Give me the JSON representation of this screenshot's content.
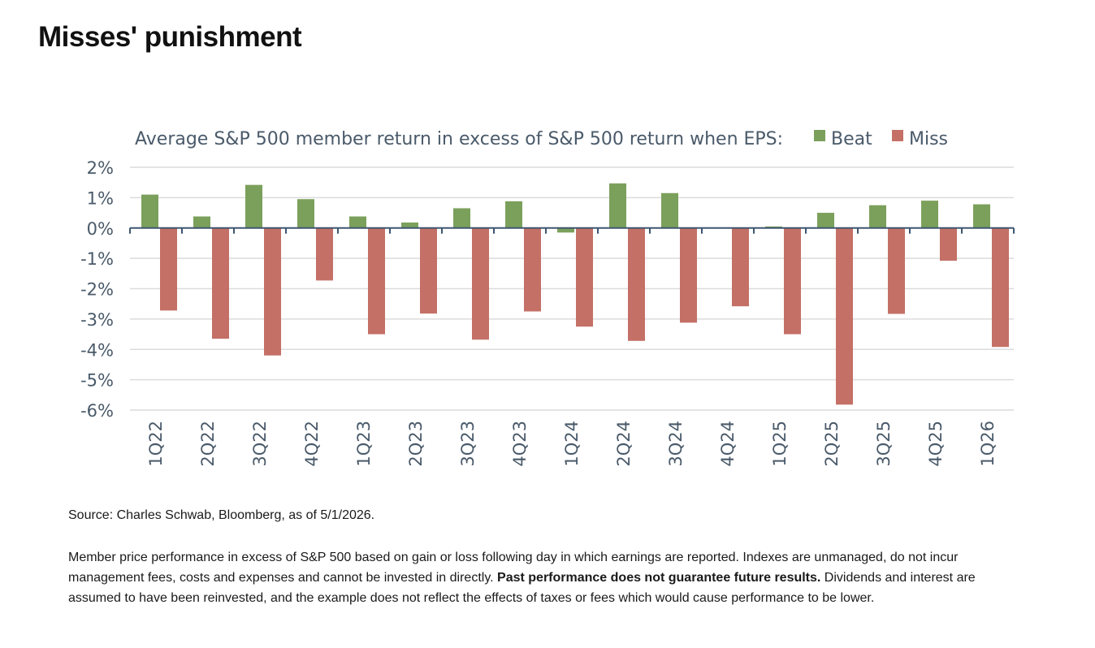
{
  "page": {
    "title": "Misses' punishment",
    "source": "Source: Charles Schwab, Bloomberg, as of 5/1/2026.",
    "disclaimer_part1": "Member price performance in excess of S&P 500 based on gain or loss following day in which earnings are reported. Indexes are unmanaged, do not incur management fees, costs and expenses and cannot be invested in directly. ",
    "disclaimer_bold": "Past performance does not guarantee future results.",
    "disclaimer_part2": " Dividends and interest are assumed to have been reinvested, and the example does not reflect the effects of taxes or fees which would cause performance to be lower."
  },
  "chart_data": {
    "type": "bar",
    "title": "Average S&P 500 member return in excess of S&P 500 return when EPS:",
    "categories": [
      "1Q22",
      "2Q22",
      "3Q22",
      "4Q22",
      "1Q23",
      "2Q23",
      "3Q23",
      "4Q23",
      "1Q24",
      "2Q24",
      "3Q24",
      "4Q24",
      "1Q25",
      "2Q25",
      "3Q25",
      "4Q25",
      "1Q26"
    ],
    "series": [
      {
        "name": "Beat",
        "color": "#7ba05b",
        "values": [
          1.1,
          0.38,
          1.42,
          0.95,
          0.38,
          0.18,
          0.65,
          0.88,
          -0.15,
          1.47,
          1.15,
          0.0,
          0.05,
          0.5,
          0.75,
          0.9,
          0.78
        ]
      },
      {
        "name": "Miss",
        "color": "#c47066",
        "values": [
          -2.72,
          -3.65,
          -4.2,
          -1.73,
          -3.5,
          -2.82,
          -3.68,
          -2.75,
          -3.25,
          -3.72,
          -3.12,
          -2.58,
          -3.5,
          -5.82,
          -2.83,
          -1.08,
          -3.92
        ]
      }
    ],
    "ylim": [
      -6,
      2
    ],
    "yticks": [
      "2%",
      "1%",
      "0%",
      "-1%",
      "-2%",
      "-3%",
      "-4%",
      "-5%",
      "-6%"
    ],
    "ytick_values": [
      2,
      1,
      0,
      -1,
      -2,
      -3,
      -4,
      -5,
      -6
    ],
    "xlabel": "",
    "ylabel": "",
    "grid": true,
    "legend_placement": "top-right, inline with title"
  }
}
